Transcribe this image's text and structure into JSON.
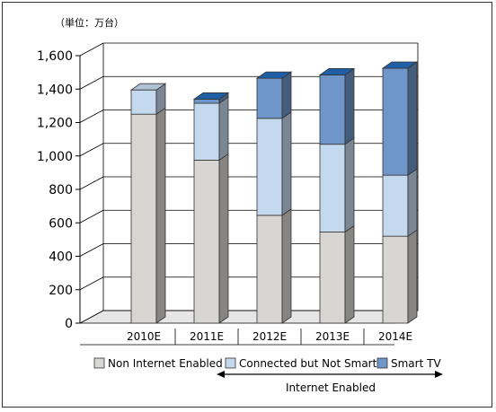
{
  "chart_data": {
    "type": "bar",
    "stacked": true,
    "unit_label": "（単位：万台）",
    "categories": [
      "2010E",
      "2011E",
      "2012E",
      "2013E",
      "2014E"
    ],
    "series": [
      {
        "name": "Non Internet Enabled",
        "values": [
          1250,
          975,
          645,
          545,
          520
        ],
        "color": "#d8d6d2"
      },
      {
        "name": "Connected but Not Smart",
        "values": [
          145,
          340,
          580,
          525,
          365
        ],
        "color": "#c4d8ee"
      },
      {
        "name": "Smart TV",
        "values": [
          0,
          25,
          240,
          415,
          640
        ],
        "color": "#6f96c8"
      }
    ],
    "ylim": [
      0,
      1600
    ],
    "yticks": [
      "0",
      "200",
      "400",
      "600",
      "800",
      "1,000",
      "1,200",
      "1,400",
      "1,600"
    ],
    "grid": true,
    "legend_position": "bottom",
    "annotation": "Internet Enabled"
  }
}
